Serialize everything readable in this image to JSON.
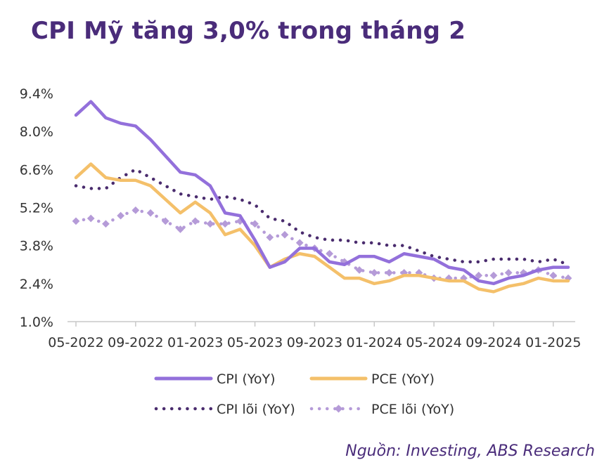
{
  "title": "CPI Mỹ tăng 3,0% trong tháng 2",
  "source": "Nguồn: Investing, ABS Research",
  "colors": {
    "cpi": "#9370db",
    "pce": "#f4c06a",
    "core_cpi": "#4a2c6e",
    "core_pce": "#b59bd8",
    "axis": "#c8c8c8",
    "title": "#4a2c7a"
  },
  "chart_data": {
    "type": "line",
    "x_tick_labels": [
      "05-2022",
      "09-2022",
      "01-2023",
      "05-2023",
      "09-2023",
      "01-2024",
      "05-2024",
      "09-2024",
      "01-2025"
    ],
    "x_tick_months_from_start": [
      0,
      4,
      8,
      12,
      16,
      20,
      24,
      28,
      32
    ],
    "y_tick_labels": [
      "1.0%",
      "2.4%",
      "3.8%",
      "5.2%",
      "6.6%",
      "8.0%",
      "9.4%"
    ],
    "yticks": [
      1.0,
      2.4,
      3.8,
      5.2,
      6.6,
      8.0,
      9.4
    ],
    "ylim": [
      1.0,
      9.4
    ],
    "x_range": [
      "05-2022",
      "02-2025"
    ],
    "grid": false,
    "legend_placement": "bottom",
    "x": [
      "05-2022",
      "06-2022",
      "07-2022",
      "08-2022",
      "09-2022",
      "10-2022",
      "11-2022",
      "12-2022",
      "01-2023",
      "02-2023",
      "03-2023",
      "04-2023",
      "05-2023",
      "06-2023",
      "07-2023",
      "08-2023",
      "09-2023",
      "10-2023",
      "11-2023",
      "12-2023",
      "01-2024",
      "02-2024",
      "03-2024",
      "04-2024",
      "05-2024",
      "06-2024",
      "07-2024",
      "08-2024",
      "09-2024",
      "10-2024",
      "11-2024",
      "12-2024",
      "01-2025",
      "02-2025"
    ],
    "series": [
      {
        "name": "CPI (YoY)",
        "style": "solid",
        "color_key": "cpi",
        "values": [
          8.6,
          9.1,
          8.5,
          8.3,
          8.2,
          7.7,
          7.1,
          6.5,
          6.4,
          6.0,
          5.0,
          4.9,
          4.0,
          3.0,
          3.2,
          3.7,
          3.7,
          3.2,
          3.1,
          3.4,
          3.4,
          3.2,
          3.5,
          3.4,
          3.3,
          3.0,
          2.9,
          2.5,
          2.4,
          2.6,
          2.7,
          2.9,
          3.0,
          3.0
        ]
      },
      {
        "name": "PCE (YoY)",
        "style": "solid",
        "color_key": "pce",
        "values": [
          6.3,
          6.8,
          6.3,
          6.2,
          6.2,
          6.0,
          5.5,
          5.0,
          5.4,
          5.0,
          4.2,
          4.4,
          3.8,
          3.0,
          3.3,
          3.5,
          3.4,
          3.0,
          2.6,
          2.6,
          2.4,
          2.5,
          2.7,
          2.7,
          2.6,
          2.5,
          2.5,
          2.2,
          2.1,
          2.3,
          2.4,
          2.6,
          2.5,
          2.5
        ]
      },
      {
        "name": "CPI lõi (YoY)",
        "style": "dotted",
        "color_key": "core_cpi",
        "values": [
          6.0,
          5.9,
          5.9,
          6.3,
          6.6,
          6.3,
          6.0,
          5.7,
          5.6,
          5.5,
          5.6,
          5.5,
          5.3,
          4.8,
          4.7,
          4.3,
          4.1,
          4.0,
          4.0,
          3.9,
          3.9,
          3.8,
          3.8,
          3.6,
          3.4,
          3.3,
          3.2,
          3.2,
          3.3,
          3.3,
          3.3,
          3.2,
          3.3,
          3.1
        ]
      },
      {
        "name": "PCE lõi (YoY)",
        "style": "dotted-diamond",
        "color_key": "core_pce",
        "values": [
          4.7,
          4.8,
          4.6,
          4.9,
          5.1,
          5.0,
          4.7,
          4.4,
          4.7,
          4.6,
          4.6,
          4.7,
          4.6,
          4.1,
          4.2,
          3.9,
          3.7,
          3.5,
          3.2,
          2.9,
          2.8,
          2.8,
          2.8,
          2.8,
          2.6,
          2.6,
          2.6,
          2.7,
          2.7,
          2.8,
          2.8,
          2.9,
          2.7,
          2.6
        ]
      }
    ]
  }
}
